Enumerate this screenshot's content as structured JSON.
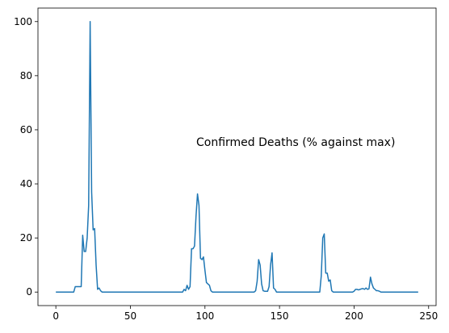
{
  "chart_data": {
    "type": "line",
    "annotation": "Confirmed Deaths  (% against max)",
    "color": "#1f77b4",
    "x": [
      0,
      1,
      2,
      3,
      4,
      5,
      6,
      7,
      8,
      9,
      10,
      11,
      12,
      13,
      14,
      15,
      16,
      17,
      18,
      19,
      20,
      21,
      22,
      23,
      24,
      25,
      26,
      27,
      28,
      29,
      30,
      31,
      32,
      33,
      34,
      35,
      36,
      37,
      38,
      39,
      40,
      41,
      42,
      43,
      44,
      45,
      46,
      47,
      48,
      49,
      50,
      51,
      52,
      53,
      54,
      55,
      56,
      57,
      58,
      59,
      60,
      61,
      62,
      63,
      64,
      65,
      66,
      67,
      68,
      69,
      70,
      71,
      72,
      73,
      74,
      75,
      76,
      77,
      78,
      79,
      80,
      81,
      82,
      83,
      84,
      85,
      86,
      87,
      88,
      89,
      90,
      91,
      92,
      93,
      94,
      95,
      96,
      97,
      98,
      99,
      100,
      101,
      102,
      103,
      104,
      105,
      106,
      107,
      108,
      109,
      110,
      111,
      112,
      113,
      114,
      115,
      116,
      117,
      118,
      119,
      120,
      121,
      122,
      123,
      124,
      125,
      126,
      127,
      128,
      129,
      130,
      131,
      132,
      133,
      134,
      135,
      136,
      137,
      138,
      139,
      140,
      141,
      142,
      143,
      144,
      145,
      146,
      147,
      148,
      149,
      150,
      151,
      152,
      153,
      154,
      155,
      156,
      157,
      158,
      159,
      160,
      161,
      162,
      163,
      164,
      165,
      166,
      167,
      168,
      169,
      170,
      171,
      172,
      173,
      174,
      175,
      176,
      177,
      178,
      179,
      180,
      181,
      182,
      183,
      184,
      185,
      186,
      187,
      188,
      189,
      190,
      191,
      192,
      193,
      194,
      195,
      196,
      197,
      198,
      199,
      200,
      201,
      202,
      203,
      204,
      205,
      206,
      207,
      208,
      209,
      210,
      211,
      212,
      213,
      214,
      215,
      216,
      217,
      218,
      219,
      220,
      221,
      222,
      223,
      224,
      225,
      226,
      227,
      228,
      229,
      230,
      231,
      232,
      233,
      234,
      235,
      236,
      237,
      238,
      239,
      240,
      241,
      242,
      243
    ],
    "values": [
      0,
      0,
      0,
      0,
      0,
      0,
      0,
      0,
      0,
      0,
      0,
      0,
      0,
      2,
      2,
      2,
      2,
      2,
      21,
      15,
      15,
      20,
      32,
      100,
      37,
      23,
      23.5,
      10,
      1,
      1.5,
      0.5,
      0,
      0,
      0,
      0,
      0,
      0,
      0,
      0,
      0,
      0,
      0,
      0,
      0,
      0,
      0,
      0,
      0,
      0,
      0,
      0,
      0,
      0,
      0,
      0,
      0,
      0,
      0,
      0,
      0,
      0,
      0,
      0,
      0,
      0,
      0,
      0,
      0,
      0,
      0,
      0,
      0,
      0,
      0,
      0,
      0,
      0,
      0,
      0,
      0,
      0,
      0,
      0,
      0,
      0,
      0,
      1,
      0.5,
      2.5,
      1,
      2,
      16,
      16,
      17,
      28,
      36.3,
      32,
      12.5,
      12,
      13,
      8,
      3.5,
      3,
      2.5,
      0.5,
      0,
      0,
      0,
      0,
      0,
      0,
      0,
      0,
      0,
      0,
      0,
      0,
      0,
      0,
      0,
      0,
      0,
      0,
      0,
      0,
      0,
      0,
      0,
      0,
      0,
      0,
      0,
      0,
      0,
      0.5,
      4,
      12,
      10,
      3,
      0.5,
      0.3,
      0.3,
      0.3,
      2,
      10,
      14.5,
      1.5,
      1,
      0,
      0,
      0,
      0,
      0,
      0,
      0,
      0,
      0,
      0,
      0,
      0,
      0,
      0,
      0,
      0,
      0,
      0,
      0,
      0,
      0,
      0,
      0,
      0,
      0,
      0,
      0,
      0,
      0,
      0,
      6,
      20,
      21.5,
      7,
      7,
      4,
      4.5,
      0.5,
      0,
      0,
      0,
      0,
      0,
      0,
      0,
      0,
      0,
      0,
      0,
      0,
      0,
      0,
      0.3,
      1,
      1,
      0.8,
      1,
      1.2,
      1.3,
      1,
      1.5,
      1,
      1.2,
      5.5,
      3,
      1.5,
      1,
      0.5,
      0.5,
      0.3,
      0,
      0,
      0,
      0,
      0,
      0,
      0,
      0,
      0,
      0,
      0,
      0,
      0,
      0,
      0,
      0,
      0,
      0,
      0,
      0,
      0,
      0,
      0,
      0,
      0,
      0
    ],
    "xlim": [
      -12,
      255
    ],
    "xticks": [
      0,
      50,
      100,
      150,
      200,
      250
    ],
    "ylim": [
      -5,
      105
    ],
    "yticks": [
      0,
      20,
      40,
      60,
      80,
      100
    ]
  }
}
